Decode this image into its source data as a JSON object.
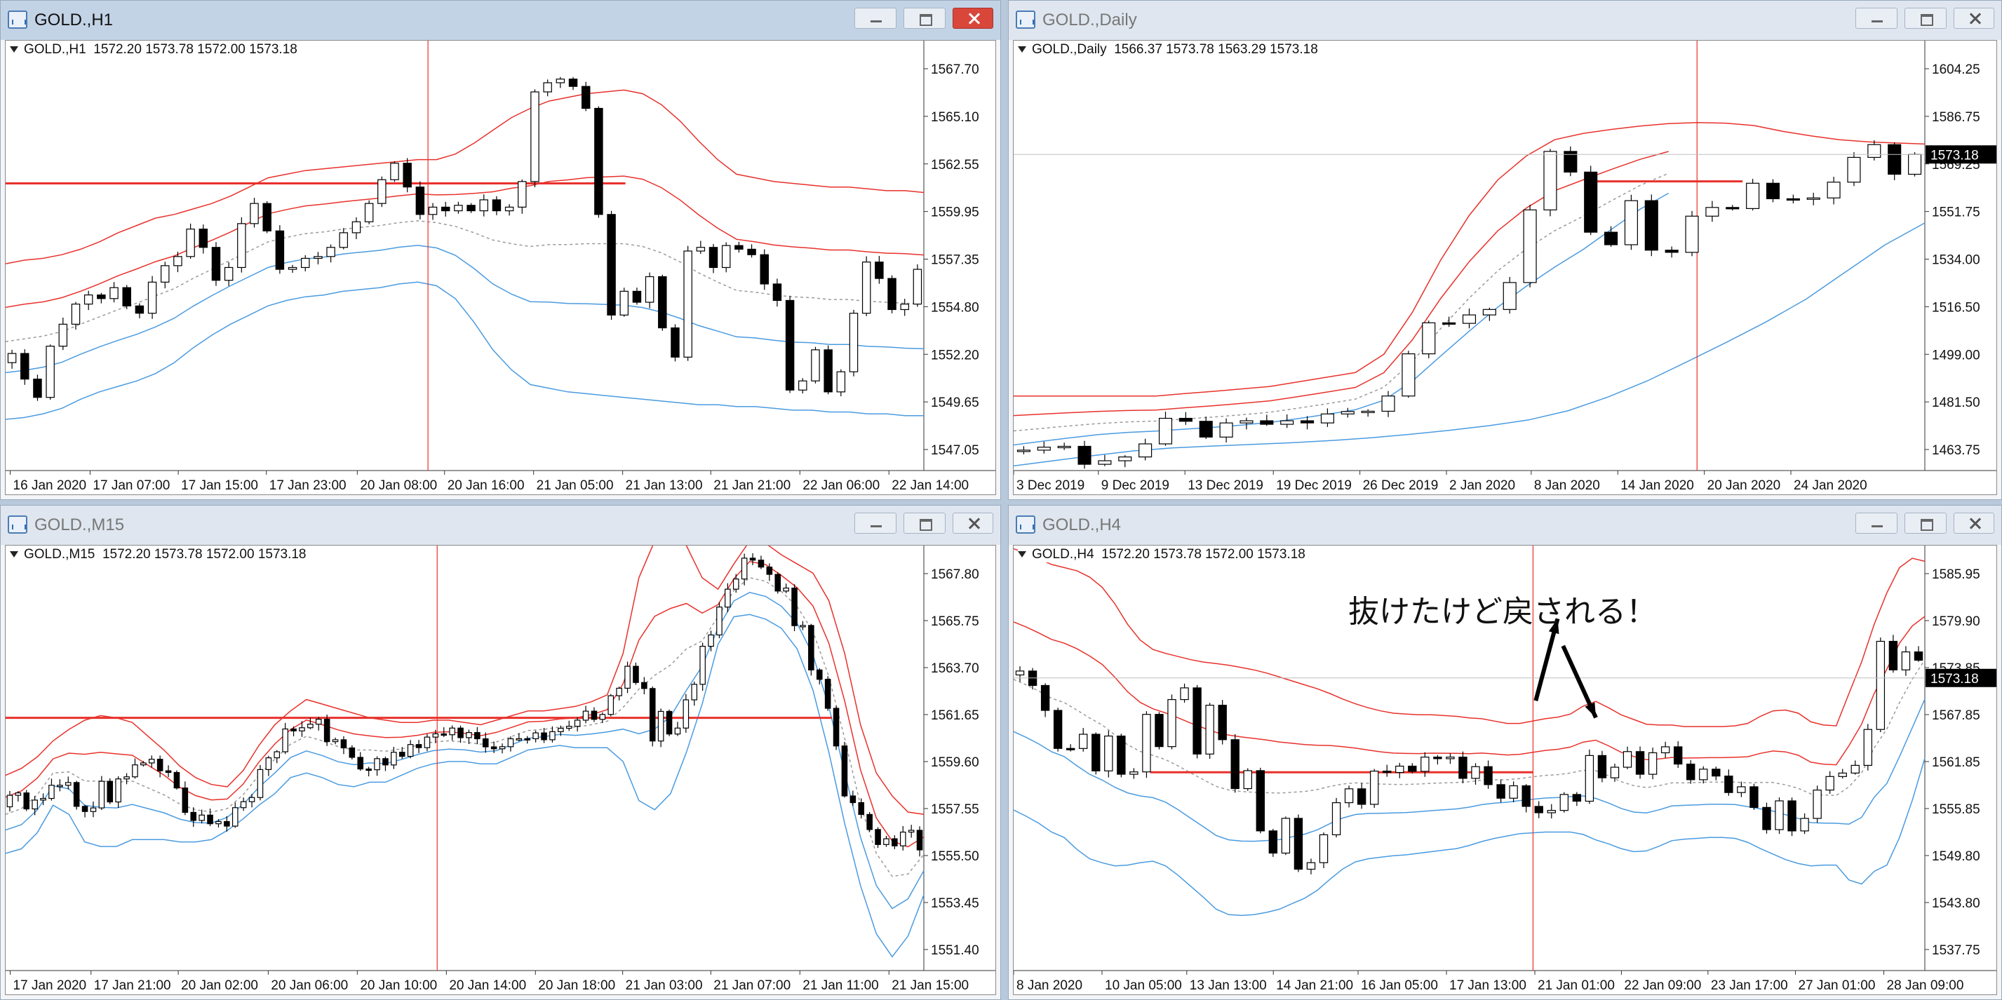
{
  "windows": [
    {
      "id": "h1",
      "title": "GOLD.,H1",
      "active": true,
      "info": {
        "symbol": "GOLD.,H1",
        "ohlc": "1572.20 1573.78 1572.00 1573.18"
      },
      "price_labels": [
        "1567.70",
        "1565.10",
        "1562.55",
        "1559.95",
        "1557.35",
        "1554.80",
        "1552.20",
        "1549.65",
        "1547.05"
      ],
      "time_labels": [
        "16 Jan 2020",
        "17 Jan 07:00",
        "17 Jan 15:00",
        "17 Jan 23:00",
        "20 Jan 08:00",
        "20 Jan 16:00",
        "21 Jan 05:00",
        "21 Jan 13:00",
        "21 Jan 21:00",
        "22 Jan 06:00",
        "22 Jan 14:00"
      ]
    },
    {
      "id": "daily",
      "title": "GOLD.,Daily",
      "active": false,
      "info": {
        "symbol": "GOLD.,Daily",
        "ohlc": "1566.37 1573.78 1563.29 1573.18"
      },
      "current_price": "1573.18",
      "price_labels": [
        "1604.25",
        "1586.75",
        "1569.25",
        "1551.75",
        "1534.00",
        "1516.50",
        "1499.00",
        "1481.50",
        "1463.75"
      ],
      "time_labels": [
        "3 Dec 2019",
        "9 Dec 2019",
        "13 Dec 2019",
        "19 Dec 2019",
        "26 Dec 2019",
        "2 Jan 2020",
        "8 Jan 2020",
        "14 Jan 2020",
        "20 Jan 2020",
        "24 Jan 2020"
      ]
    },
    {
      "id": "m15",
      "title": "GOLD.,M15",
      "active": false,
      "info": {
        "symbol": "GOLD.,M15",
        "ohlc": "1572.20 1573.78 1572.00 1573.18"
      },
      "price_labels": [
        "1567.80",
        "1565.75",
        "1563.70",
        "1561.65",
        "1559.60",
        "1557.55",
        "1555.50",
        "1553.45",
        "1551.40"
      ],
      "time_labels": [
        "17 Jan 2020",
        "17 Jan 21:00",
        "20 Jan 02:00",
        "20 Jan 06:00",
        "20 Jan 10:00",
        "20 Jan 14:00",
        "20 Jan 18:00",
        "21 Jan 03:00",
        "21 Jan 07:00",
        "21 Jan 11:00",
        "21 Jan 15:00"
      ]
    },
    {
      "id": "h4",
      "title": "GOLD.,H4",
      "active": false,
      "info": {
        "symbol": "GOLD.,H4",
        "ohlc": "1572.20 1573.78 1572.00 1573.18"
      },
      "current_price": "1573.18",
      "annotation": "抜けたけど戻される！",
      "price_labels": [
        "1585.95",
        "1579.90",
        "1573.85",
        "1567.85",
        "1561.85",
        "1555.85",
        "1549.80",
        "1543.80",
        "1537.75"
      ],
      "time_labels": [
        "8 Jan 2020",
        "10 Jan 05:00",
        "13 Jan 13:00",
        "14 Jan 21:00",
        "16 Jan 05:00",
        "17 Jan 13:00",
        "21 Jan 01:00",
        "22 Jan 09:00",
        "23 Jan 17:00",
        "27 Jan 01:00",
        "28 Jan 09:00"
      ]
    }
  ],
  "colors": {
    "bollinger": "#e8312b",
    "envelope": "#4a9be0",
    "level": "#e8312b",
    "ma": "#9a9a9a"
  },
  "chart_data": [
    {
      "type": "candlestick",
      "window": "GOLD.,H1",
      "ylim": [
        1546,
        1569.5
      ],
      "close": [
        1552.4,
        1551.0,
        1550.0,
        1552.8,
        1554.0,
        1555.1,
        1555.6,
        1555.4,
        1556.0,
        1555.0,
        1554.6,
        1556.3,
        1557.2,
        1557.7,
        1559.2,
        1558.2,
        1556.4,
        1557.1,
        1559.5,
        1560.6,
        1559.1,
        1557.0,
        1557.1,
        1557.6,
        1557.7,
        1558.2,
        1559.0,
        1559.6,
        1560.6,
        1561.9,
        1562.8,
        1561.5,
        1560.0,
        1560.4,
        1560.2,
        1560.5,
        1560.2,
        1560.8,
        1560.2,
        1560.4,
        1561.8,
        1566.7,
        1567.2,
        1567.4,
        1567.0,
        1565.8,
        1560.0,
        1554.5,
        1555.8,
        1555.2,
        1556.6,
        1553.8,
        1552.2,
        1558.0,
        1558.2,
        1557.1,
        1558.3,
        1558.1,
        1557.8,
        1556.2,
        1555.3,
        1550.4,
        1550.9,
        1552.6,
        1550.3,
        1551.4,
        1554.6,
        1557.4,
        1556.5,
        1554.8,
        1555.1,
        1557.0
      ],
      "upper_band": [
        1557.3,
        1557.5,
        1557.6,
        1557.8,
        1558.1,
        1558.5,
        1559.0,
        1559.4,
        1559.8,
        1560.0,
        1560.3,
        1560.6,
        1561.0,
        1561.5,
        1562.0,
        1562.2,
        1562.4,
        1562.5,
        1562.6,
        1562.7,
        1562.8,
        1562.9,
        1563.0,
        1563.0,
        1563.3,
        1563.9,
        1564.6,
        1565.3,
        1565.8,
        1566.2,
        1566.4,
        1566.6,
        1566.7,
        1566.8,
        1566.6,
        1566.0,
        1565.1,
        1564.0,
        1563.0,
        1562.2,
        1562.0,
        1561.8,
        1561.7,
        1561.6,
        1561.5,
        1561.5,
        1561.4,
        1561.3,
        1561.3,
        1561.2
      ],
      "lower_band": [
        1548.8,
        1548.9,
        1549.1,
        1549.4,
        1549.9,
        1550.3,
        1550.6,
        1550.9,
        1551.3,
        1551.9,
        1552.7,
        1553.4,
        1554.0,
        1554.5,
        1555.0,
        1555.3,
        1555.5,
        1555.6,
        1555.8,
        1555.9,
        1556.0,
        1556.2,
        1556.3,
        1556.1,
        1555.4,
        1554.1,
        1552.6,
        1551.5,
        1550.7,
        1550.5,
        1550.3,
        1550.2,
        1550.1,
        1550.0,
        1549.9,
        1549.8,
        1549.7,
        1549.6,
        1549.6,
        1549.5,
        1549.5,
        1549.4,
        1549.3,
        1549.3,
        1549.2,
        1549.2,
        1549.1,
        1549.1,
        1549.0,
        1549.0
      ]
    },
    {
      "type": "candlestick",
      "window": "GOLD.,Daily",
      "ylim": [
        1457,
        1615
      ],
      "close": [
        1464.5,
        1465.6,
        1465.9,
        1459.3,
        1460.6,
        1462.0,
        1466.8,
        1476.2,
        1475.1,
        1469.3,
        1474.5,
        1475.3,
        1474.0,
        1475.3,
        1474.5,
        1477.8,
        1478.7,
        1478.8,
        1484.4,
        1499.9,
        1511.3,
        1511.1,
        1514.2,
        1516.2,
        1526.1,
        1552.8,
        1574.3,
        1566.7,
        1544.6,
        1540.0,
        1556.2,
        1538.0,
        1537.2,
        1550.5,
        1553.7,
        1553.3,
        1562.6,
        1556.9,
        1556.8,
        1557.2,
        1563.0,
        1572.1,
        1576.8,
        1565.9,
        1573.2
      ],
      "upper_band": [
        1484.4,
        1484.4,
        1484.4,
        1484.4,
        1484.4,
        1484.4,
        1485.3,
        1486.1,
        1487.0,
        1487.9,
        1489.6,
        1491.3,
        1493.0,
        1499.7,
        1515.1,
        1534.4,
        1550.8,
        1563.8,
        1572.6,
        1578.6,
        1580.9,
        1582.4,
        1583.6,
        1584.5,
        1584.9,
        1584.7,
        1583.8,
        1581.7,
        1580.0,
        1578.6,
        1577.8,
        1577.4,
        1577.0
      ],
      "lower_band": [
        1458.7,
        1460.6,
        1462.5,
        1464.2,
        1465.3,
        1466.0,
        1466.6,
        1467.2,
        1468.0,
        1469.0,
        1470.3,
        1471.8,
        1473.5,
        1475.6,
        1479.0,
        1484.0,
        1490.0,
        1497.0,
        1504.2,
        1511.7,
        1520.0,
        1530.0,
        1540.0,
        1548.0
      ]
    },
    {
      "type": "candlestick",
      "window": "GOLD.,M15",
      "ylim": [
        1550.6,
        1569.1
      ],
      "upper_band": [
        1559.1,
        1559.4,
        1559.9,
        1560.6,
        1561.1,
        1561.5,
        1561.7,
        1561.6,
        1561.4,
        1560.8,
        1560.2,
        1559.5,
        1559.0,
        1558.7,
        1558.6,
        1559.3,
        1560.4,
        1561.3,
        1561.9,
        1562.4,
        1562.2,
        1562.0,
        1561.8,
        1561.6,
        1561.5,
        1561.4,
        1561.4,
        1561.5,
        1561.5,
        1561.4,
        1561.3,
        1561.5,
        1561.7,
        1561.9,
        1561.9,
        1562.0,
        1562.1,
        1562.3,
        1562.6,
        1564.4,
        1567.7,
        1569.3,
        1569.5,
        1569.1,
        1567.7,
        1567.2,
        1568.3,
        1569.3,
        1569.2,
        1568.7,
        1568.3,
        1567.9,
        1566.7,
        1564.4,
        1561.3,
        1559.2,
        1558.2,
        1557.5,
        1557.4
      ],
      "lower_band": [
        1555.7,
        1555.9,
        1556.6,
        1557.8,
        1557.4,
        1556.2,
        1556.0,
        1556.0,
        1556.3,
        1556.3,
        1556.3,
        1556.2,
        1556.2,
        1556.3,
        1556.7,
        1557.2,
        1557.8,
        1558.3,
        1559.0,
        1559.2,
        1559.0,
        1558.7,
        1558.6,
        1558.8,
        1558.8,
        1559.1,
        1559.4,
        1559.6,
        1559.7,
        1559.7,
        1559.6,
        1559.6,
        1559.9,
        1560.2,
        1560.3,
        1560.4,
        1560.3,
        1560.3,
        1560.3,
        1559.7,
        1558.0,
        1557.6,
        1558.3,
        1560.1,
        1562.2,
        1564.8,
        1566.0,
        1566.1,
        1565.9,
        1565.5,
        1564.6,
        1562.8,
        1560.1,
        1557.0,
        1554.3,
        1552.2,
        1551.2,
        1552.1,
        1553.9
      ]
    },
    {
      "type": "candlestick",
      "window": "GOLD.,H4",
      "ylim": [
        1536,
        1590
      ],
      "upper_band": [
        1589.6,
        1589.0,
        1588.3,
        1587.6,
        1587.2,
        1586.8,
        1586.0,
        1584.7,
        1582.6,
        1580.0,
        1578.0,
        1576.8,
        1576.3,
        1575.9,
        1575.5,
        1575.2,
        1575.0,
        1574.8,
        1574.5,
        1574.2,
        1573.8,
        1573.3,
        1572.8,
        1572.3,
        1571.8,
        1571.2,
        1570.5,
        1569.9,
        1569.4,
        1569.0,
        1568.7,
        1568.6,
        1568.5,
        1568.5,
        1568.4,
        1568.3,
        1568.1,
        1568.0,
        1567.7,
        1567.4,
        1567.4,
        1567.7,
        1568.0,
        1568.2,
        1568.6,
        1569.6,
        1570.2,
        1569.4,
        1568.5,
        1567.9,
        1567.3,
        1567.2,
        1567.2,
        1567.0,
        1567.0,
        1567.0,
        1567.0,
        1567.1,
        1567.4,
        1568.3,
        1569.0,
        1569.1,
        1568.7,
        1567.6,
        1567.2,
        1567.1,
        1571.2,
        1575.2,
        1580.0,
        1584.0,
        1587.2,
        1588.4,
        1588.0
      ],
      "lower_band": [
        1556.4,
        1555.6,
        1554.7,
        1553.6,
        1552.9,
        1551.4,
        1550.2,
        1549.7,
        1549.3,
        1549.4,
        1549.7,
        1549.9,
        1549.3,
        1548.1,
        1546.7,
        1545.3,
        1543.8,
        1543.1,
        1543.0,
        1543.1,
        1543.4,
        1543.8,
        1544.5,
        1545.2,
        1546.2,
        1547.6,
        1548.9,
        1549.8,
        1550.2,
        1550.4,
        1550.6,
        1550.7,
        1550.9,
        1551.1,
        1551.3,
        1551.5,
        1551.9,
        1552.4,
        1552.8,
        1553.1,
        1553.4,
        1553.5,
        1553.6,
        1553.6,
        1553.6,
        1553.3,
        1552.6,
        1552.1,
        1551.5,
        1551.1,
        1551.2,
        1551.8,
        1552.5,
        1552.7,
        1552.8,
        1552.9,
        1552.9,
        1552.8,
        1552.3,
        1551.5,
        1550.8,
        1550.1,
        1549.6,
        1549.3,
        1549.4,
        1549.4,
        1547.5,
        1547.0,
        1548.6,
        1549.4,
        1552.9,
        1557.6,
        1563.0
      ]
    }
  ]
}
